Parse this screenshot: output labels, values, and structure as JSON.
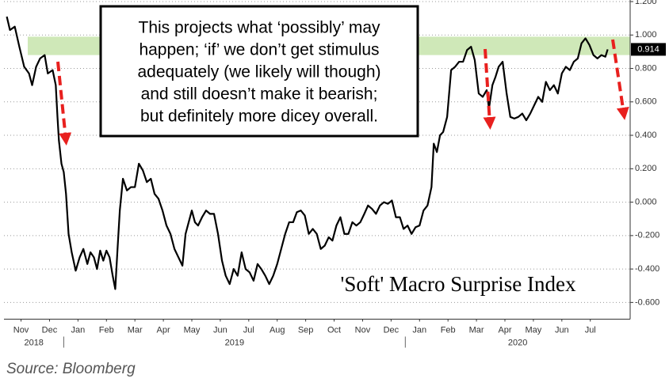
{
  "chart_data": {
    "type": "line",
    "annotation": "'Soft' Macro Surprise Index",
    "note_lines": [
      "This projects what ‘possibly’ may",
      "happen; ‘if’ we don’t get stimulus",
      "adequately (we likely will though)",
      "and still doesn’t make it bearish;",
      "but definitely more dicey overall."
    ],
    "source": "Source: Bloomberg",
    "series": [
      {
        "color": "#000000",
        "x": [
          0,
          0.11,
          0.28,
          0.44,
          0.61,
          0.78,
          0.89,
          1.03,
          1.17,
          1.33,
          1.44,
          1.61,
          1.72,
          1.78,
          1.83,
          1.92,
          2.0,
          2.08,
          2.17,
          2.28,
          2.42,
          2.56,
          2.69,
          2.83,
          2.94,
          3.06,
          3.17,
          3.28,
          3.39,
          3.5,
          3.61,
          3.72,
          3.81,
          3.89,
          3.97,
          4.08,
          4.22,
          4.36,
          4.5,
          4.64,
          4.78,
          4.92,
          5.06,
          5.19,
          5.33,
          5.47,
          5.61,
          5.75,
          5.89,
          6.03,
          6.17,
          6.28,
          6.39,
          6.5,
          6.61,
          6.72,
          6.86,
          7.0,
          7.14,
          7.28,
          7.42,
          7.56,
          7.69,
          7.83,
          7.97,
          8.11,
          8.25,
          8.39,
          8.53,
          8.67,
          8.81,
          8.94,
          9.08,
          9.22,
          9.36,
          9.5,
          9.64,
          9.78,
          9.92,
          10.06,
          10.19,
          10.33,
          10.47,
          10.61,
          10.75,
          10.89,
          11.03,
          11.17,
          11.31,
          11.44,
          11.58,
          11.72,
          11.86,
          12.0,
          12.14,
          12.28,
          12.42,
          12.56,
          12.69,
          12.83,
          12.97,
          13.11,
          13.25,
          13.39,
          13.53,
          13.67,
          13.81,
          13.94,
          14.08,
          14.22,
          14.36,
          14.5,
          14.64,
          14.78,
          14.92,
          15.0,
          15.11,
          15.22,
          15.33,
          15.47,
          15.61,
          15.75,
          15.89,
          16.03,
          16.17,
          16.31,
          16.44,
          16.58,
          16.72,
          16.86,
          16.94,
          17.06,
          17.17,
          17.28,
          17.42,
          17.56,
          17.69,
          17.83,
          17.97,
          18.11,
          18.25,
          18.39,
          18.53,
          18.67,
          18.81,
          18.94,
          19.08,
          19.22,
          19.36,
          19.5,
          19.64,
          19.78,
          19.92,
          20.06,
          20.19,
          20.33,
          20.47,
          20.61,
          20.75,
          20.89,
          21.03,
          21.11
        ],
        "values": [
          1.11,
          1.03,
          1.05,
          0.93,
          0.81,
          0.77,
          0.7,
          0.81,
          0.86,
          0.88,
          0.77,
          0.79,
          0.7,
          0.51,
          0.37,
          0.23,
          0.18,
          0.05,
          -0.19,
          -0.3,
          -0.41,
          -0.33,
          -0.28,
          -0.37,
          -0.3,
          -0.33,
          -0.4,
          -0.29,
          -0.35,
          -0.29,
          -0.33,
          -0.44,
          -0.52,
          -0.28,
          -0.05,
          0.14,
          0.07,
          0.09,
          0.09,
          0.23,
          0.19,
          0.12,
          0.14,
          0.05,
          0.02,
          -0.05,
          -0.14,
          -0.19,
          -0.28,
          -0.33,
          -0.38,
          -0.19,
          -0.12,
          -0.05,
          -0.12,
          -0.14,
          -0.09,
          -0.05,
          -0.07,
          -0.07,
          -0.19,
          -0.35,
          -0.44,
          -0.49,
          -0.4,
          -0.44,
          -0.3,
          -0.4,
          -0.42,
          -0.47,
          -0.37,
          -0.4,
          -0.44,
          -0.49,
          -0.44,
          -0.37,
          -0.28,
          -0.19,
          -0.12,
          -0.12,
          -0.06,
          -0.05,
          -0.08,
          -0.19,
          -0.16,
          -0.19,
          -0.28,
          -0.26,
          -0.21,
          -0.23,
          -0.14,
          -0.09,
          -0.19,
          -0.19,
          -0.12,
          -0.14,
          -0.12,
          -0.07,
          -0.02,
          -0.04,
          -0.07,
          -0.02,
          0.0,
          -0.01,
          0.01,
          -0.09,
          -0.09,
          -0.16,
          -0.14,
          -0.19,
          -0.15,
          -0.14,
          -0.05,
          -0.02,
          0.09,
          0.35,
          0.3,
          0.4,
          0.42,
          0.51,
          0.79,
          0.81,
          0.84,
          0.84,
          0.91,
          0.93,
          0.85,
          0.65,
          0.63,
          0.67,
          0.56,
          0.7,
          0.75,
          0.81,
          0.84,
          0.65,
          0.51,
          0.5,
          0.51,
          0.53,
          0.49,
          0.53,
          0.58,
          0.63,
          0.6,
          0.72,
          0.67,
          0.7,
          0.65,
          0.77,
          0.81,
          0.79,
          0.84,
          0.86,
          0.95,
          0.98,
          0.94,
          0.88,
          0.86,
          0.88,
          0.87,
          0.914
        ]
      }
    ],
    "last_value_label": true,
    "band": [
      0.88,
      0.99
    ],
    "band_color": "#cfe8b8",
    "xlim": [
      -0.1,
      21.9
    ],
    "xticks": [
      {
        "value": 0.5,
        "label": "Nov"
      },
      {
        "value": 1.5,
        "label": "Dec"
      },
      {
        "value": 2.5,
        "label": "Jan"
      },
      {
        "value": 3.5,
        "label": "Feb"
      },
      {
        "value": 4.5,
        "label": "Mar"
      },
      {
        "value": 5.5,
        "label": "Apr"
      },
      {
        "value": 6.5,
        "label": "May"
      },
      {
        "value": 7.5,
        "label": "Jun"
      },
      {
        "value": 8.5,
        "label": "Jul"
      },
      {
        "value": 9.5,
        "label": "Aug"
      },
      {
        "value": 10.5,
        "label": "Sep"
      },
      {
        "value": 11.5,
        "label": "Oct"
      },
      {
        "value": 12.5,
        "label": "Nov"
      },
      {
        "value": 13.5,
        "label": "Dec"
      },
      {
        "value": 14.5,
        "label": "Jan"
      },
      {
        "value": 15.5,
        "label": "Feb"
      },
      {
        "value": 16.5,
        "label": "Mar"
      },
      {
        "value": 17.5,
        "label": "Apr"
      },
      {
        "value": 18.5,
        "label": "May"
      },
      {
        "value": 19.5,
        "label": "Jun"
      },
      {
        "value": 20.5,
        "label": "Jul"
      }
    ],
    "xgroups": [
      {
        "label": "2018",
        "range": [
          -0.1,
          2
        ]
      },
      {
        "label": "2019",
        "range": [
          2,
          14
        ]
      },
      {
        "label": "2020",
        "range": [
          14,
          21.9
        ]
      }
    ],
    "ylim": [
      -0.7,
      1.2
    ],
    "yticks": [
      {
        "value": 1.2,
        "label": "1.200"
      },
      {
        "value": 1.0,
        "label": "1.000"
      },
      {
        "value": 0.8,
        "label": "0.800"
      },
      {
        "value": 0.6,
        "label": "0.600"
      },
      {
        "value": 0.4,
        "label": "0.400"
      },
      {
        "value": 0.2,
        "label": "0.200"
      },
      {
        "value": 0,
        "label": "0.000"
      },
      {
        "value": -0.2,
        "label": "-0.200"
      },
      {
        "value": -0.4,
        "label": "-0.400"
      },
      {
        "value": -0.6,
        "label": "-0.600"
      }
    ],
    "grid": true
  }
}
